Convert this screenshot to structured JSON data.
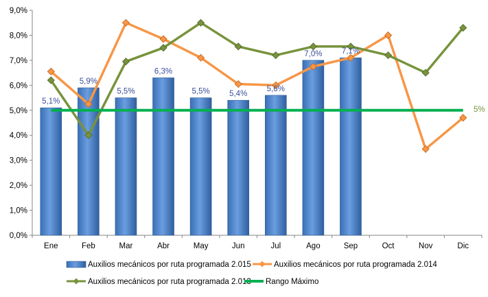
{
  "chart_data": {
    "type": "bar",
    "categories": [
      "Ene",
      "Feb",
      "Mar",
      "Abr",
      "May",
      "Jun",
      "Jul",
      "Ago",
      "Sep",
      "Oct",
      "Nov",
      "Dic"
    ],
    "ylim": [
      0,
      9
    ],
    "yticks": [
      0,
      1,
      2,
      3,
      4,
      5,
      6,
      7,
      8,
      9
    ],
    "ytick_labels": [
      "0,0%",
      "1,0%",
      "2,0%",
      "3,0%",
      "4,0%",
      "5,0%",
      "6,0%",
      "7,0%",
      "8,0%",
      "9,0%"
    ],
    "grid": false,
    "legend_position": "bottom",
    "series": [
      {
        "name": "Auxilios mecánicos por ruta programada 2.015",
        "kind": "bar",
        "color": "#4a7fc7",
        "values": [
          5.1,
          5.9,
          5.5,
          6.3,
          5.5,
          5.4,
          5.6,
          7.0,
          7.1,
          null,
          null,
          null
        ],
        "data_labels": [
          "5,1%",
          "5,9%",
          "5,5%",
          "6,3%",
          "5,5%",
          "5,4%",
          "5,6%",
          "7,0%",
          "7,1%",
          "",
          "",
          ""
        ]
      },
      {
        "name": "Auxilios mecánicos por ruta programada 2.014",
        "kind": "line",
        "color": "#f79646",
        "values": [
          6.55,
          5.25,
          8.5,
          7.85,
          7.1,
          6.05,
          6.0,
          6.75,
          7.1,
          8.0,
          3.45,
          4.7
        ]
      },
      {
        "name": "Auxilios mecánicos por ruta programada 2.013",
        "kind": "line",
        "color": "#77933c",
        "values": [
          6.2,
          4.0,
          6.95,
          7.5,
          8.5,
          7.55,
          7.2,
          7.55,
          7.55,
          7.2,
          6.5,
          8.3
        ]
      },
      {
        "name": "Rango Máximo",
        "kind": "line",
        "color": "#00b050",
        "values": [
          5,
          5,
          5,
          5,
          5,
          5,
          5,
          5,
          5,
          5,
          5,
          5
        ],
        "end_label": "5%"
      }
    ]
  }
}
